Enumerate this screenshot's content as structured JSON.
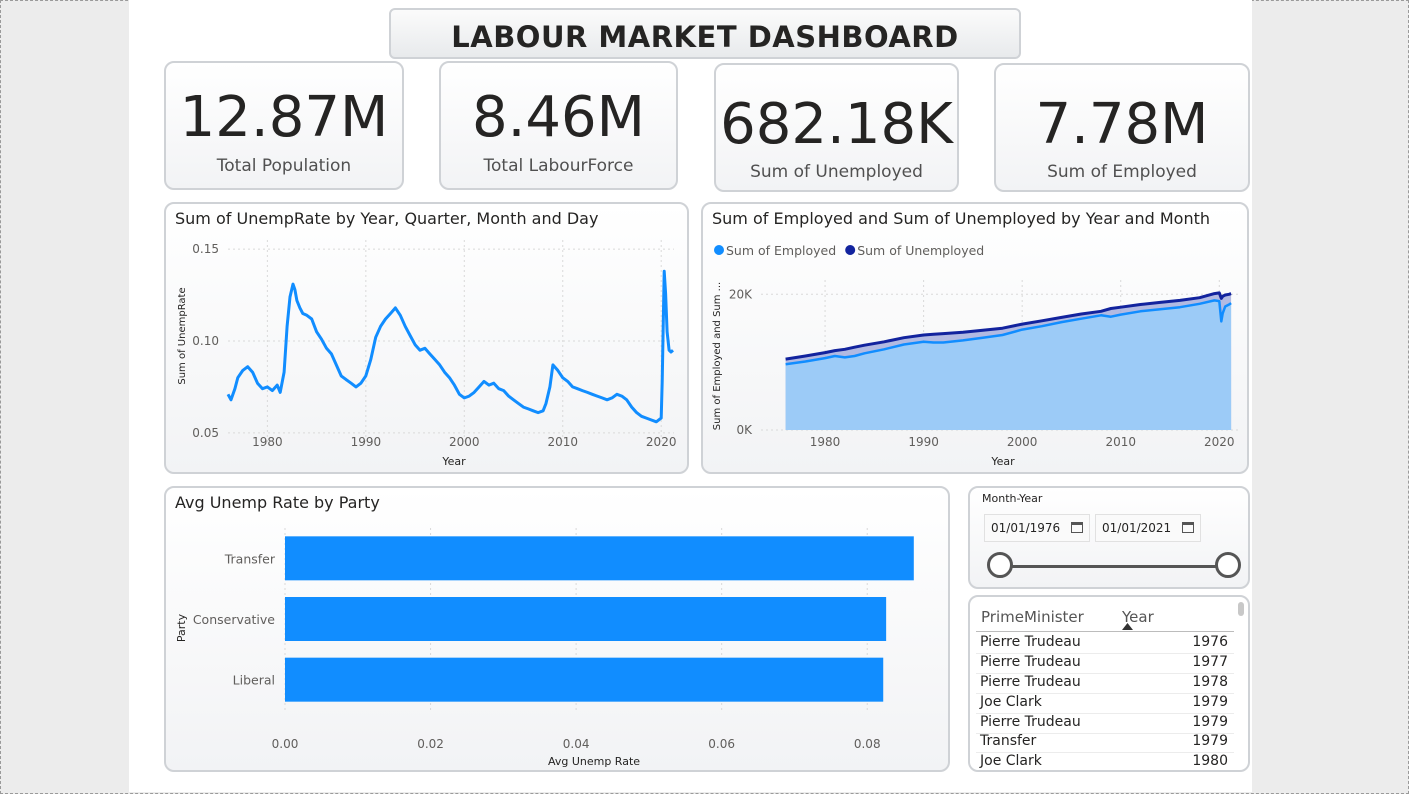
{
  "dashboard": {
    "title": "LABOUR MARKET DASHBOARD"
  },
  "kpis": [
    {
      "value": "12.87M",
      "label": "Total Population"
    },
    {
      "value": "8.46M",
      "label": "Total LabourForce"
    },
    {
      "value": "682.18K",
      "label": "Sum of Unemployed"
    },
    {
      "value": "7.78M",
      "label": "Sum of Employed"
    }
  ],
  "chart_data": [
    {
      "type": "line",
      "title": "Sum of UnempRate by Year, Quarter, Month and Day",
      "xlabel": "Year",
      "ylabel": "Sum of UnempRate",
      "xlim": [
        1976,
        2021.3
      ],
      "ylim": [
        0.045,
        0.155
      ],
      "x_ticks": [
        "1980",
        "1990",
        "2000",
        "2010",
        "2020"
      ],
      "y_ticks": [
        "0.15",
        "0.10",
        "0.05"
      ],
      "grid": true,
      "color": "#118dff",
      "series": [
        {
          "x": [
            1976,
            1976.3,
            1976.7,
            1977,
            1977.5,
            1978,
            1978.5,
            1979,
            1979.5,
            1980,
            1980.5,
            1981,
            1981.3,
            1981.7,
            1982,
            1982.3,
            1982.6,
            1982.8,
            1983,
            1983.3,
            1983.6,
            1984,
            1984.5,
            1985,
            1985.5,
            1986,
            1986.5,
            1987,
            1987.5,
            1988,
            1988.5,
            1989,
            1989.5,
            1990,
            1990.5,
            1991,
            1991.5,
            1992,
            1992.5,
            1993,
            1993.5,
            1994,
            1994.5,
            1995,
            1995.5,
            1996,
            1996.5,
            1997,
            1997.5,
            1998,
            1998.5,
            1999,
            1999.5,
            2000,
            2000.5,
            2001,
            2001.5,
            2002,
            2002.5,
            2003,
            2003.5,
            2004,
            2004.5,
            2005,
            2005.5,
            2006,
            2006.5,
            2007,
            2007.5,
            2008,
            2008.3,
            2008.7,
            2009,
            2009.5,
            2010,
            2010.5,
            2011,
            2011.5,
            2012,
            2012.5,
            2013,
            2013.5,
            2014,
            2014.5,
            2015,
            2015.5,
            2016,
            2016.5,
            2017,
            2017.5,
            2018,
            2018.5,
            2019,
            2019.5,
            2020,
            2020.1,
            2020.3,
            2020.45,
            2020.6,
            2020.8,
            2021,
            2021.2
          ],
          "y": [
            0.071,
            0.068,
            0.074,
            0.08,
            0.084,
            0.086,
            0.083,
            0.077,
            0.074,
            0.075,
            0.073,
            0.076,
            0.072,
            0.083,
            0.108,
            0.124,
            0.131,
            0.128,
            0.122,
            0.118,
            0.115,
            0.114,
            0.112,
            0.105,
            0.101,
            0.096,
            0.093,
            0.087,
            0.081,
            0.079,
            0.077,
            0.075,
            0.077,
            0.081,
            0.09,
            0.102,
            0.108,
            0.112,
            0.115,
            0.118,
            0.114,
            0.108,
            0.103,
            0.098,
            0.095,
            0.096,
            0.093,
            0.09,
            0.087,
            0.083,
            0.08,
            0.076,
            0.071,
            0.069,
            0.07,
            0.072,
            0.075,
            0.078,
            0.076,
            0.077,
            0.074,
            0.073,
            0.07,
            0.068,
            0.066,
            0.064,
            0.063,
            0.062,
            0.061,
            0.062,
            0.066,
            0.075,
            0.087,
            0.084,
            0.08,
            0.078,
            0.075,
            0.074,
            0.073,
            0.072,
            0.071,
            0.07,
            0.069,
            0.068,
            0.069,
            0.071,
            0.07,
            0.068,
            0.064,
            0.061,
            0.059,
            0.058,
            0.057,
            0.056,
            0.058,
            0.078,
            0.138,
            0.126,
            0.105,
            0.095,
            0.094,
            0.095
          ]
        }
      ]
    },
    {
      "type": "area",
      "title": "Sum of Employed and Sum of Unemployed by Year and Month",
      "xlabel": "Year",
      "ylabel": "Sum of Employed and Sum ...",
      "xlim": [
        1973.5,
        2022
      ],
      "ylim": [
        0,
        28000
      ],
      "x_ticks": [
        "1980",
        "1990",
        "2000",
        "2010",
        "2020"
      ],
      "y_ticks": [
        "20K",
        "0K"
      ],
      "legend": "top-left",
      "grid": true,
      "x": [
        1976,
        1978,
        1980,
        1981,
        1982,
        1983,
        1984,
        1986,
        1988,
        1990,
        1991,
        1992,
        1994,
        1996,
        1998,
        2000,
        2002,
        2004,
        2006,
        2008,
        2009,
        2010,
        2012,
        2014,
        2016,
        2018,
        2019.5,
        2020,
        2020.2,
        2020.35,
        2020.6,
        2021,
        2021.2
      ],
      "series": [
        {
          "name": "Sum of Employed",
          "color": "#118dff",
          "values": [
            9700,
            10100,
            10600,
            10900,
            10700,
            10900,
            11300,
            11900,
            12600,
            13000,
            12900,
            12900,
            13200,
            13600,
            14000,
            14800,
            15300,
            15900,
            16400,
            16900,
            16700,
            17000,
            17500,
            17800,
            18100,
            18600,
            19100,
            19000,
            16000,
            17200,
            18200,
            18500,
            18700
          ]
        },
        {
          "name": "Sum of Unemployed",
          "color": "#12239e",
          "values": [
            10450,
            10900,
            11400,
            11700,
            11900,
            12200,
            12500,
            13000,
            13600,
            14000,
            14100,
            14200,
            14400,
            14700,
            15000,
            15600,
            16100,
            16600,
            17100,
            17500,
            17900,
            18100,
            18500,
            18800,
            19100,
            19500,
            20100,
            20200,
            19400,
            19700,
            19900,
            20000,
            20100
          ]
        }
      ]
    },
    {
      "type": "bar",
      "orientation": "horizontal",
      "title": "Avg Unemp Rate by Party",
      "xlabel": "Avg Unemp Rate",
      "ylabel": "Party",
      "categories": [
        "Transfer",
        "Conservative",
        "Liberal"
      ],
      "values": [
        0.0864,
        0.0826,
        0.0822
      ],
      "xlim": [
        0,
        0.09
      ],
      "x_ticks": [
        "0.00",
        "0.02",
        "0.04",
        "0.06",
        "0.08"
      ],
      "grid": true,
      "color": "#118dff"
    }
  ],
  "slicer": {
    "header": "Month-Year",
    "start_date": "01/01/1976",
    "end_date": "01/01/2021",
    "range_start": 0,
    "range_end": 1
  },
  "pm_table": {
    "columns": [
      "PrimeMinister",
      "Year"
    ],
    "sorted_column": "Year",
    "rows": [
      {
        "name": "Pierre Trudeau",
        "year": "1976"
      },
      {
        "name": "Pierre Trudeau",
        "year": "1977"
      },
      {
        "name": "Pierre Trudeau",
        "year": "1978"
      },
      {
        "name": "Joe Clark",
        "year": "1979"
      },
      {
        "name": "Pierre Trudeau",
        "year": "1979"
      },
      {
        "name": "Transfer",
        "year": "1979"
      },
      {
        "name": "Joe Clark",
        "year": "1980"
      }
    ]
  }
}
